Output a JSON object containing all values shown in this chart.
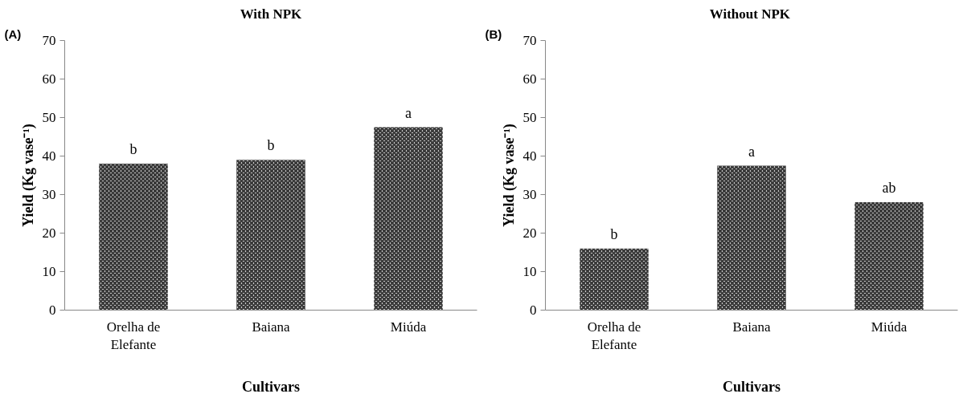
{
  "chart_data": [
    {
      "type": "bar",
      "title": "With NPK",
      "xlabel": "Cultivars",
      "ylabel": "Yield (Kg vase⁻¹)",
      "categories": [
        "Orelha de Elefante",
        "Baiana",
        "Miúda"
      ],
      "values": [
        38,
        39,
        47.5
      ],
      "color": "#3a3a3a",
      "ylim": [
        0,
        70
      ],
      "yticks": [
        0,
        10,
        20,
        30,
        40,
        50,
        60,
        70
      ],
      "grid": false,
      "annotations": [
        "(A)",
        {
          "text": "b",
          "x": "Orelha de Elefante",
          "y": 38
        },
        {
          "text": "b",
          "x": "Baiana",
          "y": 39
        },
        {
          "text": "a",
          "x": "Miúda",
          "y": 47.5
        }
      ]
    },
    {
      "type": "bar",
      "title": "Without  NPK",
      "xlabel": "Cultivars",
      "ylabel": "Yield (Kg vase⁻¹)",
      "categories": [
        "Orelha de Elefante",
        "Baiana",
        "Miúda"
      ],
      "values": [
        16,
        37.5,
        28
      ],
      "color": "#3a3a3a",
      "ylim": [
        0,
        70
      ],
      "yticks": [
        0,
        10,
        20,
        30,
        40,
        50,
        60,
        70
      ],
      "grid": false,
      "annotations": [
        "(B)",
        {
          "text": "b",
          "x": "Orelha de Elefante",
          "y": 16
        },
        {
          "text": "a",
          "x": "Baiana",
          "y": 37.5
        },
        {
          "text": "ab",
          "x": "Miúda",
          "y": 28
        }
      ]
    }
  ]
}
